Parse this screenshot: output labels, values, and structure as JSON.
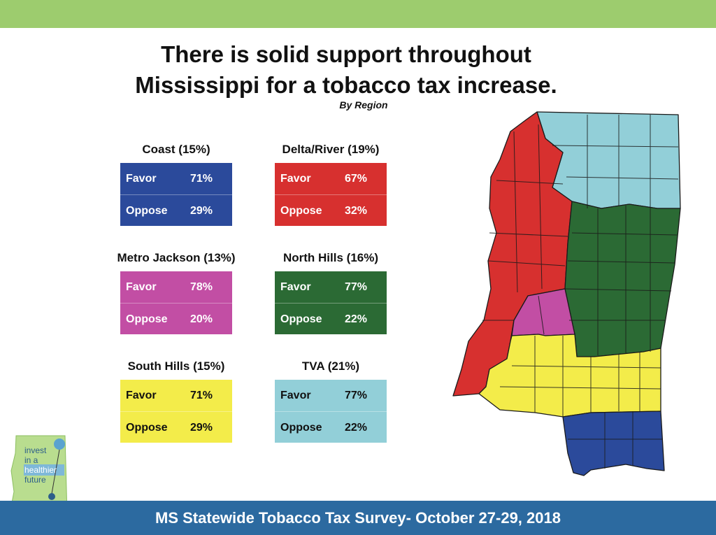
{
  "header": {
    "title_line1": "There is solid support throughout",
    "title_line2": "Mississippi for a tobacco tax increase.",
    "subtitle": "By Region"
  },
  "colors": {
    "top_band": "#9dcc6e",
    "footer": "#2c6aa0",
    "coast": "#2b4a9b",
    "delta_river": "#d7302f",
    "metro_jackson": "#c24ea4",
    "north_hills": "#2b6a34",
    "south_hills": "#f3ec4a",
    "tva": "#92cfd8"
  },
  "chart_data": {
    "type": "table",
    "title": "There is solid support throughout Mississippi for a tobacco tax increase.",
    "subtitle": "By Region",
    "columns": [
      "Favor",
      "Oppose"
    ],
    "regions": [
      {
        "name": "Coast (15%)",
        "favor": 71,
        "oppose": 29,
        "favor_text": "71%",
        "oppose_text": "29%",
        "color": "#2b4a9b",
        "text_color": "#ffffff"
      },
      {
        "name": "Delta/River (19%)",
        "favor": 67,
        "oppose": 32,
        "favor_text": "67%",
        "oppose_text": "32%",
        "color": "#d7302f",
        "text_color": "#ffffff"
      },
      {
        "name": "Metro Jackson (13%)",
        "favor": 78,
        "oppose": 20,
        "favor_text": "78%",
        "oppose_text": "20%",
        "color": "#c24ea4",
        "text_color": "#ffffff"
      },
      {
        "name": "North Hills (16%)",
        "favor": 77,
        "oppose": 22,
        "favor_text": "77%",
        "oppose_text": "22%",
        "color": "#2b6a34",
        "text_color": "#ffffff"
      },
      {
        "name": "South Hills (15%)",
        "favor": 71,
        "oppose": 29,
        "favor_text": "71%",
        "oppose_text": "29%",
        "color": "#f3ec4a",
        "text_color": "#111111"
      },
      {
        "name": "TVA (21%)",
        "favor": 77,
        "oppose": 22,
        "favor_text": "77%",
        "oppose_text": "22%",
        "color": "#92cfd8",
        "text_color": "#111111"
      }
    ]
  },
  "labels": {
    "favor": "Favor",
    "oppose": "Oppose"
  },
  "logo": {
    "line1": "invest",
    "line2": "in a",
    "line3": "healthier",
    "line4": "future"
  },
  "footer": {
    "text": "MS Statewide Tobacco Tax Survey- October 27-29, 2018"
  }
}
